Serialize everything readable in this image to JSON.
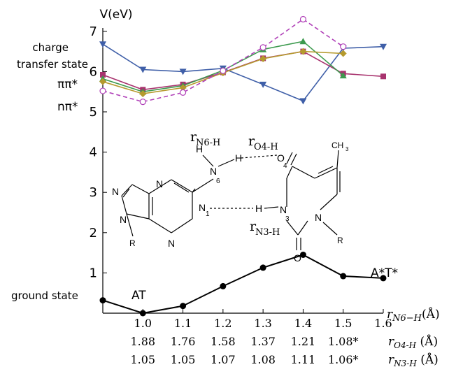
{
  "chart_data": {
    "type": "line",
    "title": "",
    "ylabel": "V(eV)",
    "ylim": [
      0,
      7.7
    ],
    "yticks": [
      1,
      2,
      3,
      4,
      5,
      6,
      7
    ],
    "ytick_labels": [
      "1",
      "2",
      "3",
      "4",
      "5",
      "6",
      "7"
    ],
    "xlim": [
      0.9,
      1.6
    ],
    "x": [
      0.9,
      1.0,
      1.1,
      1.2,
      1.3,
      1.4,
      1.5,
      1.6
    ],
    "xticks": [
      1.0,
      1.1,
      1.2,
      1.3,
      1.4,
      1.5,
      1.6
    ],
    "xtick_labels": [
      "1.0",
      "1.1",
      "1.2",
      "1.3",
      "1.4",
      "1.5",
      "1.6"
    ],
    "xlabel_main": "r",
    "xlabel_main_sub": "N6−H",
    "xlabel_main_unit": "(Å)",
    "extra_axes": [
      {
        "label": "r",
        "sub": "O4-H",
        "unit": " (Å)",
        "values": [
          "1.88",
          "1.76",
          "1.58",
          "1.37",
          "1.21",
          "1.08*"
        ]
      },
      {
        "label": "r",
        "sub": "N3-H",
        "unit": " (Å)",
        "values": [
          "1.05",
          "1.05",
          "1.07",
          "1.08",
          "1.11",
          "1.06*"
        ]
      }
    ],
    "state_labels": {
      "ct_line1": "charge",
      "ct_line2": "transfer state",
      "pipi": "ππ*",
      "npi": "nπ*",
      "ground": "ground state",
      "at": "AT",
      "atstar": "A*T*"
    },
    "series": [
      {
        "marker": "tri-down",
        "color": "#3f5fa8",
        "dashed": false,
        "x": [
          0.9,
          1.0,
          1.1,
          1.2,
          1.3,
          1.4,
          1.5,
          1.6
        ],
        "y": [
          6.68,
          6.05,
          6.0,
          6.08,
          5.68,
          5.27,
          6.58,
          6.62
        ]
      },
      {
        "marker": "square",
        "color": "#a8336e",
        "dashed": false,
        "x": [
          0.9,
          1.0,
          1.1,
          1.2,
          1.3,
          1.4,
          1.5,
          1.6
        ],
        "y": [
          5.92,
          5.55,
          5.68,
          5.98,
          6.33,
          6.5,
          5.95,
          5.88
        ]
      },
      {
        "marker": "tri-up",
        "color": "#3c9a4e",
        "dashed": false,
        "x": [
          0.9,
          1.0,
          1.1,
          1.2,
          1.3,
          1.4,
          1.5
        ],
        "y": [
          5.82,
          5.5,
          5.65,
          6.03,
          6.55,
          6.75,
          5.9
        ]
      },
      {
        "marker": "diamond",
        "color": "#b59a2e",
        "dashed": false,
        "x": [
          0.9,
          1.0,
          1.1,
          1.2,
          1.3,
          1.4,
          1.5
        ],
        "y": [
          5.75,
          5.45,
          5.6,
          5.97,
          6.32,
          6.5,
          6.45
        ]
      },
      {
        "marker": "circle-open",
        "color": "#b040b8",
        "dashed": true,
        "x": [
          0.9,
          1.0,
          1.1,
          1.2,
          1.3,
          1.4,
          1.5
        ],
        "y": [
          5.52,
          5.25,
          5.48,
          6.02,
          6.6,
          7.3,
          6.62
        ]
      },
      {
        "marker": "circle",
        "color": "#000000",
        "dashed": false,
        "x": [
          0.9,
          1.0,
          1.1,
          1.2,
          1.3,
          1.4,
          1.5,
          1.6
        ],
        "y": [
          0.32,
          0.0,
          0.18,
          0.67,
          1.13,
          1.45,
          0.92,
          0.87
        ]
      }
    ]
  },
  "molecule": {
    "label_rn6h_main": "r",
    "label_rn6h_sub": "N6-H",
    "label_ro4h_main": "r",
    "label_ro4h_sub": "O4-H",
    "label_rn3h_main": "r",
    "label_rn3h_sub": "N3-H",
    "atom_H": "H",
    "atom_N": "N",
    "atom_O": "O",
    "atom_R": "R",
    "atom_CH3_main": "CH",
    "atom_CH3_sub": "3",
    "num_6": "6",
    "num_1": "1",
    "num_3": "3",
    "num_4": "4"
  }
}
